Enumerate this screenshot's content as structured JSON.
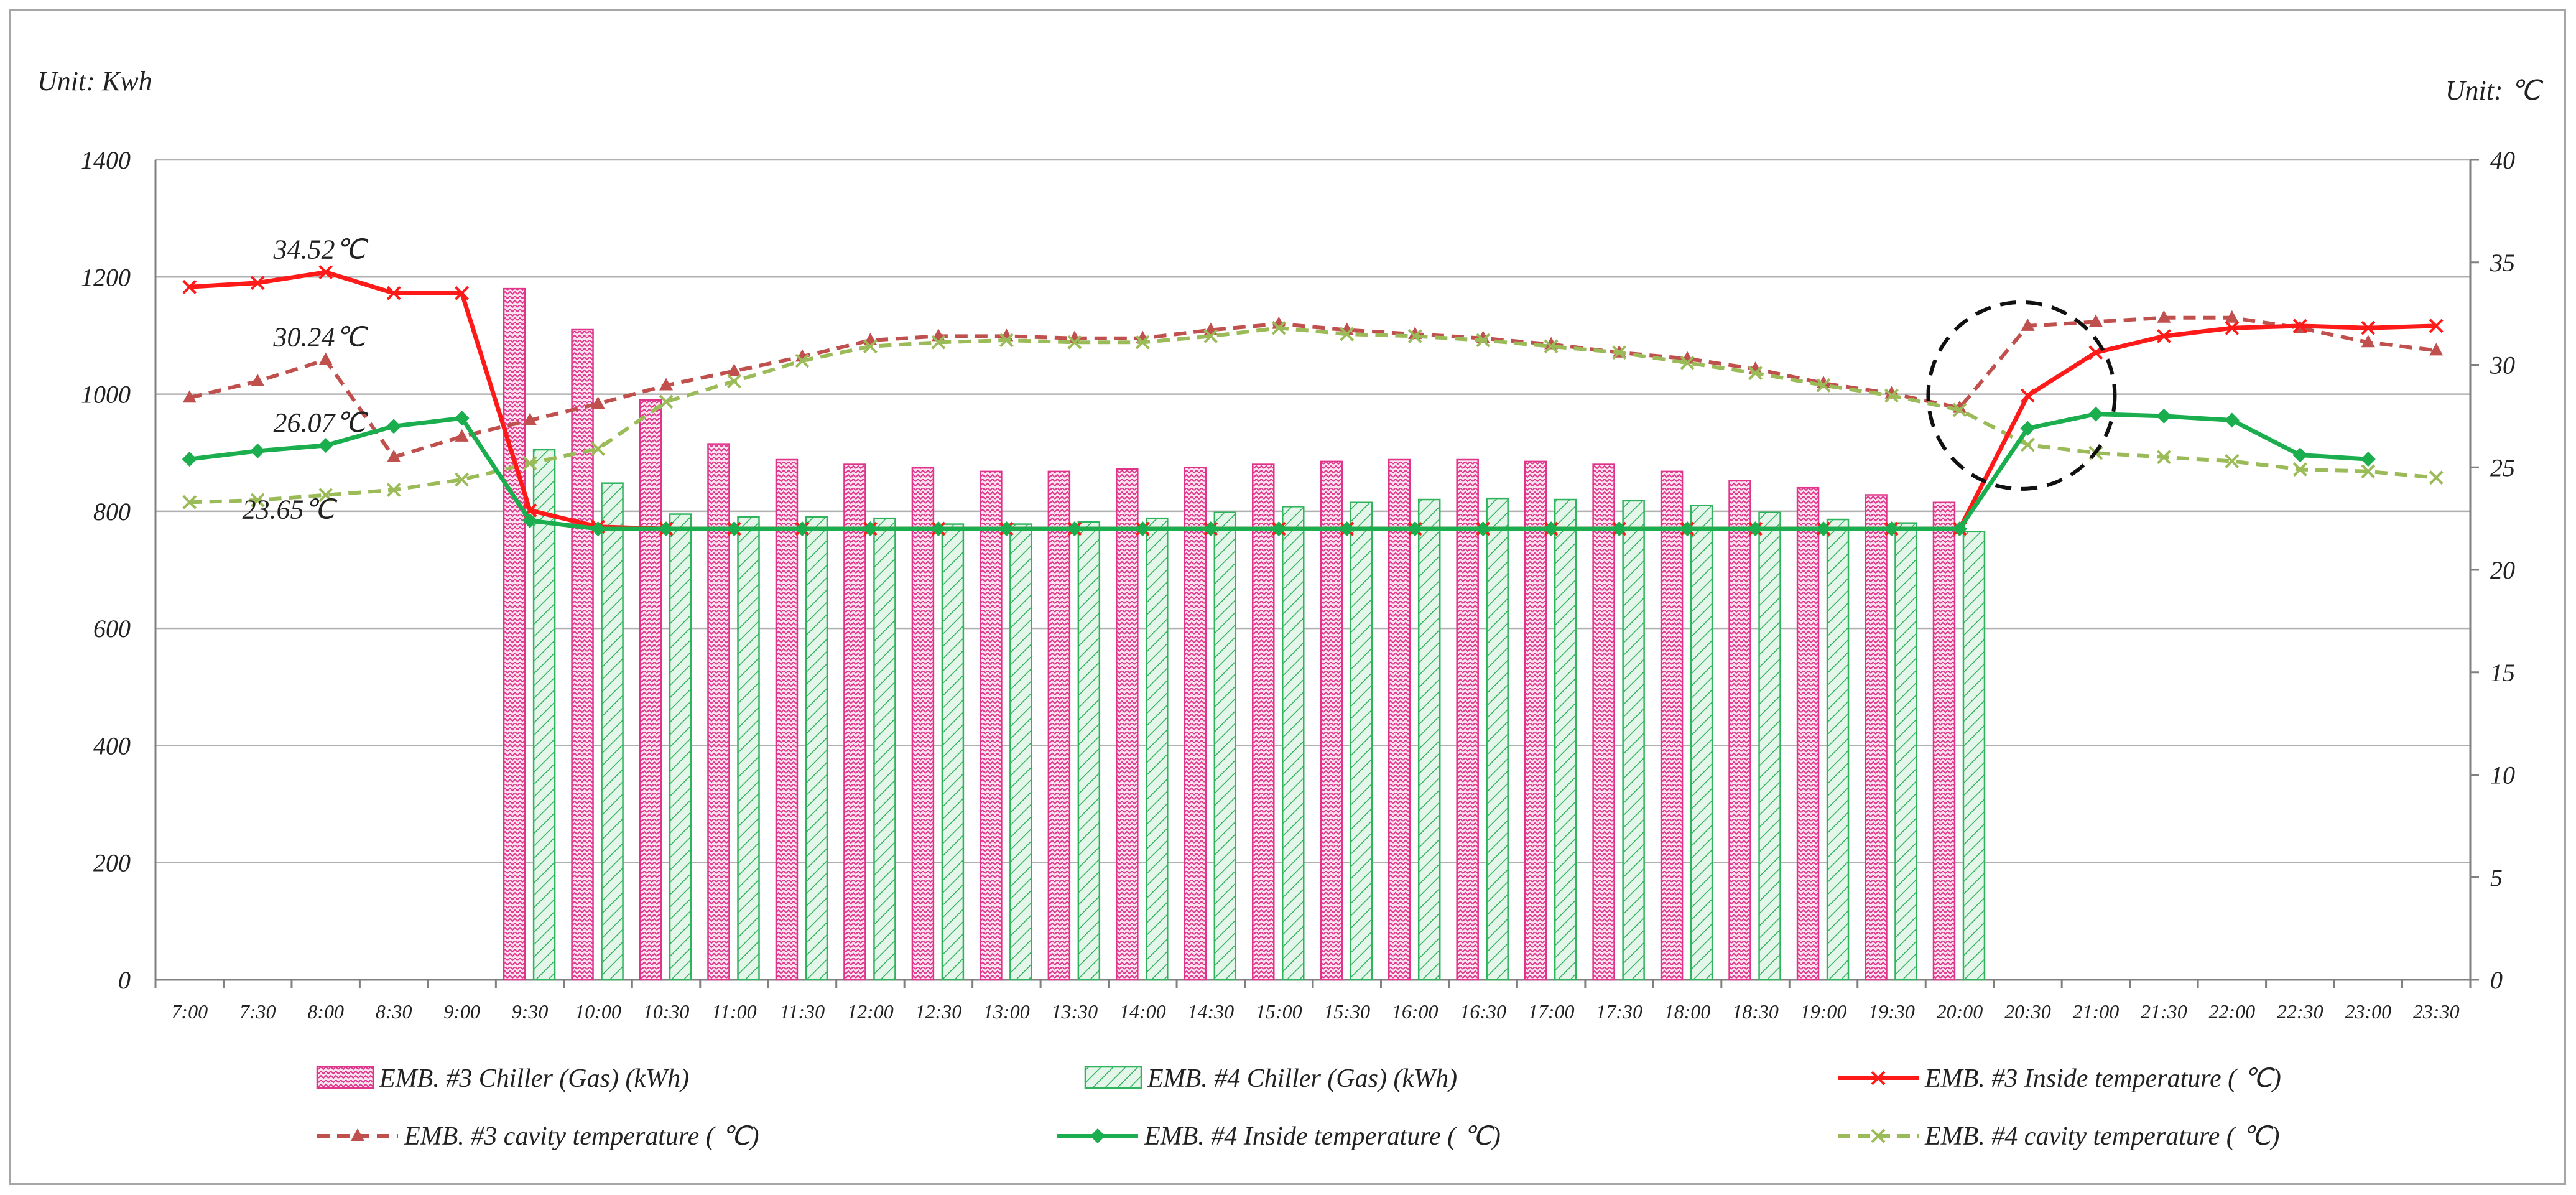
{
  "chart_data": {
    "type": "bar+line",
    "left_unit": "Unit: Kwh",
    "right_unit": "Unit: ℃",
    "left_axis": {
      "min": 0,
      "max": 1400,
      "ticks": [
        "0",
        "200",
        "400",
        "600",
        "800",
        "1000",
        "1200",
        "1400"
      ]
    },
    "right_axis": {
      "min": 0,
      "max": 40,
      "ticks": [
        "0",
        "5",
        "10",
        "15",
        "20",
        "25",
        "30",
        "35",
        "40"
      ]
    },
    "categories": [
      "7:00",
      "7:30",
      "8:00",
      "8:30",
      "9:00",
      "9:30",
      "10:00",
      "10:30",
      "11:00",
      "11:30",
      "12:00",
      "12:30",
      "13:00",
      "13:30",
      "14:00",
      "14:30",
      "15:00",
      "15:30",
      "16:00",
      "16:30",
      "17:00",
      "17:30",
      "18:00",
      "18:30",
      "19:00",
      "19:30",
      "20:00",
      "20:30",
      "21:00",
      "21:30",
      "22:00",
      "22:30",
      "23:00",
      "23:30"
    ],
    "bar_series": [
      {
        "name": "EMB. #3 Chiller (Gas) (kWh)",
        "color": "#e0338a",
        "fill": "#f7c6df",
        "values": [
          null,
          null,
          null,
          null,
          null,
          1180,
          1110,
          990,
          915,
          888,
          880,
          874,
          868,
          868,
          872,
          875,
          880,
          885,
          888,
          888,
          885,
          880,
          868,
          852,
          840,
          828,
          815,
          null,
          null,
          null,
          null,
          null,
          null,
          null
        ]
      },
      {
        "name": "EMB. #4 Chiller (Gas) (kWh)",
        "color": "#2fb35c",
        "fill": "#c8ecd4",
        "values": [
          null,
          null,
          null,
          null,
          null,
          905,
          848,
          795,
          790,
          790,
          788,
          778,
          778,
          782,
          788,
          798,
          808,
          815,
          820,
          822,
          820,
          818,
          810,
          798,
          786,
          780,
          765,
          null,
          null,
          null,
          null,
          null,
          null,
          null
        ]
      }
    ],
    "line_series": [
      {
        "name": "EMB. #3 Inside temperature ( ℃)",
        "color": "#ff1a1a",
        "marker": "x",
        "dash": false,
        "values": [
          33.8,
          34.0,
          34.52,
          33.5,
          33.5,
          22.9,
          22.1,
          22.0,
          22.0,
          22.0,
          22.0,
          22.0,
          22.0,
          22.0,
          22.0,
          22.0,
          22.0,
          22.0,
          22.0,
          22.0,
          22.0,
          22.0,
          22.0,
          22.0,
          22.0,
          22.0,
          22.0,
          28.5,
          30.6,
          31.4,
          31.8,
          31.9,
          31.8,
          31.9
        ]
      },
      {
        "name": "EMB. #3 cavity temperature ( ℃)",
        "color": "#c0504d",
        "marker": "triangle",
        "dash": true,
        "values": [
          28.4,
          29.2,
          30.24,
          25.5,
          26.5,
          27.3,
          28.1,
          29.0,
          29.7,
          30.4,
          31.2,
          31.4,
          31.4,
          31.3,
          31.3,
          31.7,
          32.0,
          31.7,
          31.5,
          31.3,
          31.0,
          30.6,
          30.3,
          29.8,
          29.1,
          28.6,
          27.9,
          31.9,
          32.1,
          32.3,
          32.3,
          31.8,
          31.1,
          30.7
        ]
      },
      {
        "name": "EMB. #4 Inside temperature ( ℃)",
        "color": "#1aae4f",
        "marker": "diamond",
        "dash": false,
        "values": [
          25.4,
          25.8,
          26.07,
          27.0,
          27.4,
          22.4,
          22.0,
          22.0,
          22.0,
          22.0,
          22.0,
          22.0,
          22.0,
          22.0,
          22.0,
          22.0,
          22.0,
          22.0,
          22.0,
          22.0,
          22.0,
          22.0,
          22.0,
          22.0,
          22.0,
          22.0,
          22.0,
          26.9,
          27.6,
          27.5,
          27.3,
          25.6,
          25.4,
          null
        ]
      },
      {
        "name": "EMB. #4 cavity temperature ( ℃)",
        "color": "#9bbb59",
        "marker": "x",
        "dash": true,
        "values": [
          23.3,
          23.4,
          23.65,
          23.9,
          24.4,
          25.2,
          25.9,
          28.2,
          29.2,
          30.2,
          30.9,
          31.1,
          31.2,
          31.1,
          31.1,
          31.4,
          31.8,
          31.5,
          31.4,
          31.2,
          30.9,
          30.6,
          30.1,
          29.6,
          29.0,
          28.5,
          27.8,
          26.1,
          25.7,
          25.5,
          25.3,
          24.9,
          24.8,
          24.5
        ]
      }
    ],
    "annotations": [
      {
        "text": "34.52℃",
        "category": "8:00",
        "value": 34.52
      },
      {
        "text": "30.24℃",
        "category": "8:00",
        "value": 30.24
      },
      {
        "text": "26.07℃",
        "category": "8:00",
        "value": 26.07
      },
      {
        "text": "23.65℃",
        "category": "8:00",
        "value": 23.65
      }
    ],
    "highlight_circle": {
      "category": "20:30",
      "value": 28.5
    },
    "legend_position": "bottom"
  }
}
